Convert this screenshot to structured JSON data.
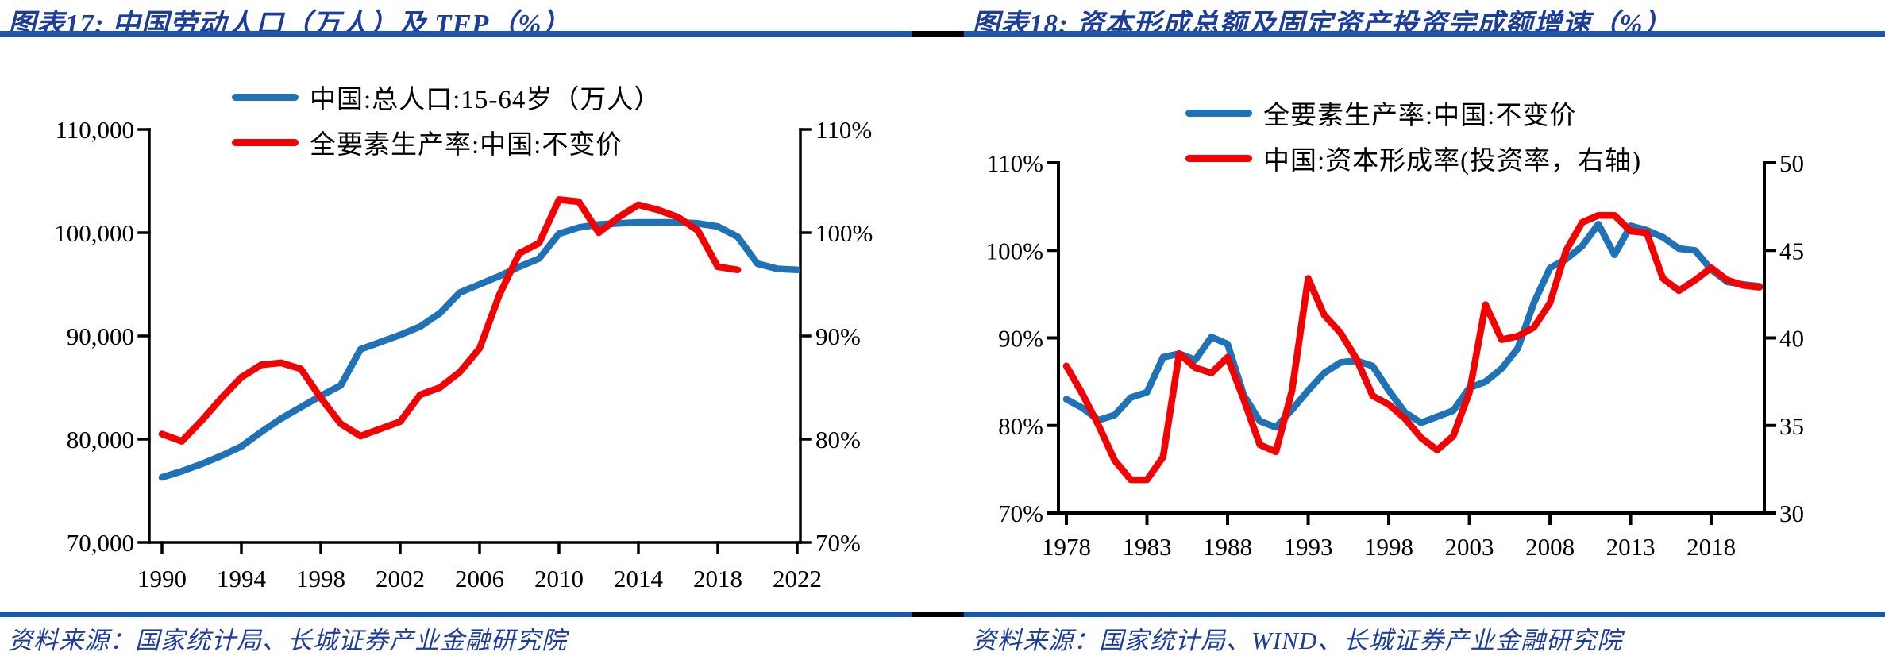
{
  "page": {
    "heading_blue": "#1C3D99",
    "rule_blue": "#1F55A8",
    "divider_black": "#000000",
    "line_blue": "#1F72B5",
    "line_red": "#F20202",
    "axis_black": "#000000"
  },
  "chart_data": [
    {
      "type": "line",
      "title": "图表17:  中国劳动人口（万人）及 TFP（%）",
      "source": "资料来源：国家统计局、长城证券产业金融研究院",
      "legend_position": "top",
      "grid": false,
      "x_range": [
        1990,
        2022
      ],
      "x_ticks": [
        [
          1990,
          "1990"
        ],
        [
          1994,
          "1994"
        ],
        [
          1998,
          "1998"
        ],
        [
          2002,
          "2002"
        ],
        [
          2006,
          "2006"
        ],
        [
          2010,
          "2010"
        ],
        [
          2014,
          "2014"
        ],
        [
          2018,
          "2018"
        ],
        [
          2022,
          "2022"
        ]
      ],
      "y_left": {
        "min": 70000,
        "max": 110000,
        "ticks": [
          [
            110000,
            "110,000"
          ],
          [
            100000,
            "100,000"
          ],
          [
            90000,
            "90,000"
          ],
          [
            80000,
            "80,000"
          ],
          [
            70000,
            "70,000"
          ]
        ]
      },
      "y_right": {
        "min": 70,
        "max": 110,
        "ticks": [
          [
            110,
            "110%"
          ],
          [
            100,
            "100%"
          ],
          [
            90,
            "90%"
          ],
          [
            80,
            "80%"
          ],
          [
            70,
            "70%"
          ]
        ]
      },
      "series": [
        {
          "name": "中国:总人口:15-64岁（万人）",
          "color": "#1F72B5",
          "axis": "left",
          "x_start": 1990,
          "values": [
            76300,
            76900,
            77600,
            78400,
            79300,
            80700,
            82000,
            83100,
            84200,
            85200,
            88700,
            89400,
            90100,
            90900,
            92200,
            94200,
            95000,
            95800,
            96700,
            97500,
            99900,
            100500,
            100800,
            100900,
            101000,
            101000,
            101000,
            100900,
            100600,
            99600,
            97000,
            96500,
            96400
          ]
        },
        {
          "name": "全要素生产率:中国:不变价",
          "color": "#F20202",
          "axis": "right",
          "x_start": 1990,
          "values": [
            80.5,
            79.8,
            81.8,
            84.0,
            86.0,
            87.2,
            87.4,
            86.8,
            84.0,
            81.5,
            80.3,
            81.0,
            81.7,
            84.3,
            85.0,
            86.5,
            88.8,
            94.0,
            98.0,
            99.0,
            103.2,
            103.0,
            100.0,
            101.5,
            102.7,
            102.2,
            101.5,
            100.2,
            96.7,
            96.4
          ]
        }
      ]
    },
    {
      "type": "line",
      "title": "图表18:  资本形成总额及固定资产投资完成额增速（%）",
      "source": "资料来源：国家统计局、WIND、长城证券产业金融研究院",
      "legend_position": "top",
      "grid": false,
      "x_range": [
        1978,
        2021
      ],
      "x_ticks": [
        [
          1978,
          "1978"
        ],
        [
          1983,
          "1983"
        ],
        [
          1988,
          "1988"
        ],
        [
          1993,
          "1993"
        ],
        [
          1998,
          "1998"
        ],
        [
          2003,
          "2003"
        ],
        [
          2008,
          "2008"
        ],
        [
          2013,
          "2013"
        ],
        [
          2018,
          "2018"
        ]
      ],
      "y_left": {
        "min": 70,
        "max": 110,
        "ticks": [
          [
            110,
            "110%"
          ],
          [
            100,
            "100%"
          ],
          [
            90,
            "90%"
          ],
          [
            80,
            "80%"
          ],
          [
            70,
            "70%"
          ]
        ]
      },
      "y_right": {
        "min": 30,
        "max": 50,
        "ticks": [
          [
            50,
            "50"
          ],
          [
            45,
            "45"
          ],
          [
            40,
            "40"
          ],
          [
            35,
            "35"
          ],
          [
            30,
            "30"
          ]
        ]
      },
      "series": [
        {
          "name": "全要素生产率:中国:不变价",
          "color": "#1F72B5",
          "axis": "left",
          "x_start": 1978,
          "values": [
            83.0,
            82.0,
            80.6,
            81.2,
            83.2,
            83.8,
            87.8,
            88.2,
            87.5,
            90.1,
            89.3,
            83.5,
            80.5,
            79.8,
            81.8,
            84.0,
            86.0,
            87.2,
            87.4,
            86.8,
            84.0,
            81.5,
            80.3,
            81.0,
            81.7,
            84.3,
            85.0,
            86.5,
            88.8,
            94.0,
            98.0,
            99.0,
            100.5,
            103.0,
            99.5,
            102.8,
            102.3,
            101.5,
            100.2,
            100.0,
            97.8,
            96.4,
            96.1,
            95.9
          ]
        },
        {
          "name": "中国:资本形成率(投资率，右轴)",
          "color": "#F20202",
          "axis": "right",
          "x_start": 1978,
          "values": [
            38.4,
            36.8,
            35.0,
            33.0,
            31.9,
            31.9,
            33.2,
            39.1,
            38.3,
            38.0,
            38.9,
            36.5,
            33.9,
            33.5,
            37.0,
            43.4,
            41.3,
            40.3,
            38.8,
            36.7,
            36.2,
            35.4,
            34.3,
            33.6,
            34.4,
            36.9,
            41.9,
            39.9,
            40.1,
            40.6,
            42.0,
            45.0,
            46.6,
            47.0,
            47.0,
            46.1,
            46.0,
            43.4,
            42.7,
            43.3,
            44.0,
            43.3,
            43.0,
            42.9
          ]
        }
      ]
    }
  ]
}
